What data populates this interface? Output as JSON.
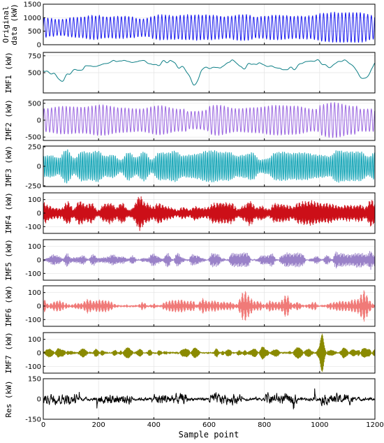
{
  "chart_data": {
    "type": "line",
    "xlabel": "Sample point",
    "xlim": [
      0,
      1200
    ],
    "xticks": [
      0,
      200,
      400,
      600,
      800,
      1000,
      1200
    ],
    "grid": true,
    "panels": [
      {
        "name": "original",
        "ylabel_lines": [
          "Original",
          "data (kW)"
        ],
        "ylim": [
          0,
          1500
        ],
        "yticks": [
          0,
          500,
          1000,
          1500
        ],
        "color": "#1a1aee"
      },
      {
        "name": "imf1",
        "ylabel_lines": [
          "IMF1 (kW)"
        ],
        "ylim": [
          200,
          800
        ],
        "yticks": [
          500,
          750
        ],
        "color": "#0d7f86"
      },
      {
        "name": "imf2",
        "ylabel_lines": [
          "IMF2 (kW)"
        ],
        "ylim": [
          -600,
          600
        ],
        "yticks": [
          -500,
          0,
          500
        ],
        "color": "#9a66e0"
      },
      {
        "name": "imf3",
        "ylabel_lines": [
          "IMF3 (kW)"
        ],
        "ylim": [
          -260,
          260
        ],
        "yticks": [
          -250,
          0,
          250
        ],
        "color": "#0fa3b5"
      },
      {
        "name": "imf4",
        "ylabel_lines": [
          "IMF4 (kW)"
        ],
        "ylim": [
          -150,
          150
        ],
        "yticks": [
          -100,
          0,
          100
        ],
        "color": "#cc0f18"
      },
      {
        "name": "imf5",
        "ylabel_lines": [
          "IMF5 (kW)"
        ],
        "ylim": [
          -150,
          150
        ],
        "yticks": [
          -100,
          0,
          100
        ],
        "color": "#9a82c8"
      },
      {
        "name": "imf6",
        "ylabel_lines": [
          "IMF6 (kW)"
        ],
        "ylim": [
          -150,
          150
        ],
        "yticks": [
          -100,
          0,
          100
        ],
        "color": "#f07a78"
      },
      {
        "name": "imf7",
        "ylabel_lines": [
          "IMF7 (kW)"
        ],
        "ylim": [
          -150,
          150
        ],
        "yticks": [
          -100,
          0,
          100
        ],
        "color": "#8a8a00"
      },
      {
        "name": "res",
        "ylabel_lines": [
          "Res (kW)"
        ],
        "ylim": [
          -150,
          150
        ],
        "yticks": [
          -150,
          0,
          150
        ],
        "color": "#000000"
      }
    ]
  }
}
